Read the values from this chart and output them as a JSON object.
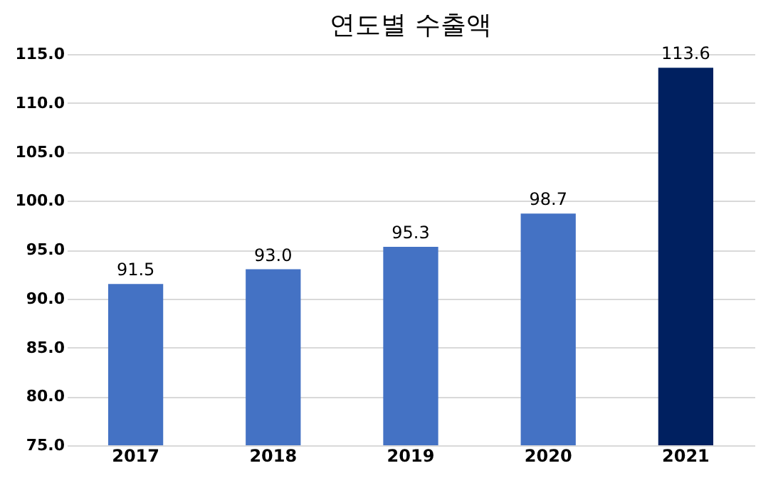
{
  "chart_data": {
    "type": "bar",
    "title": "연도별 수출액",
    "categories": [
      "2017",
      "2018",
      "2019",
      "2020",
      "2021"
    ],
    "values": [
      91.5,
      93.0,
      95.3,
      98.7,
      113.6
    ],
    "colors": [
      "#4472c4",
      "#4472c4",
      "#4472c4",
      "#4472c4",
      "#002060"
    ],
    "ylim": [
      75,
      115
    ],
    "yticks": [
      {
        "value": 75,
        "label": "75.0"
      },
      {
        "value": 80,
        "label": "80.0"
      },
      {
        "value": 85,
        "label": "85.0"
      },
      {
        "value": 90,
        "label": "90.0"
      },
      {
        "value": 95,
        "label": "95.0"
      },
      {
        "value": 100,
        "label": "100.0"
      },
      {
        "value": 105,
        "label": "105.0"
      },
      {
        "value": 110,
        "label": "110.0"
      },
      {
        "value": 115,
        "label": "115.0"
      }
    ],
    "value_labels": [
      "91.5",
      "93.0",
      "95.3",
      "98.7",
      "113.6"
    ],
    "grid": "y"
  }
}
